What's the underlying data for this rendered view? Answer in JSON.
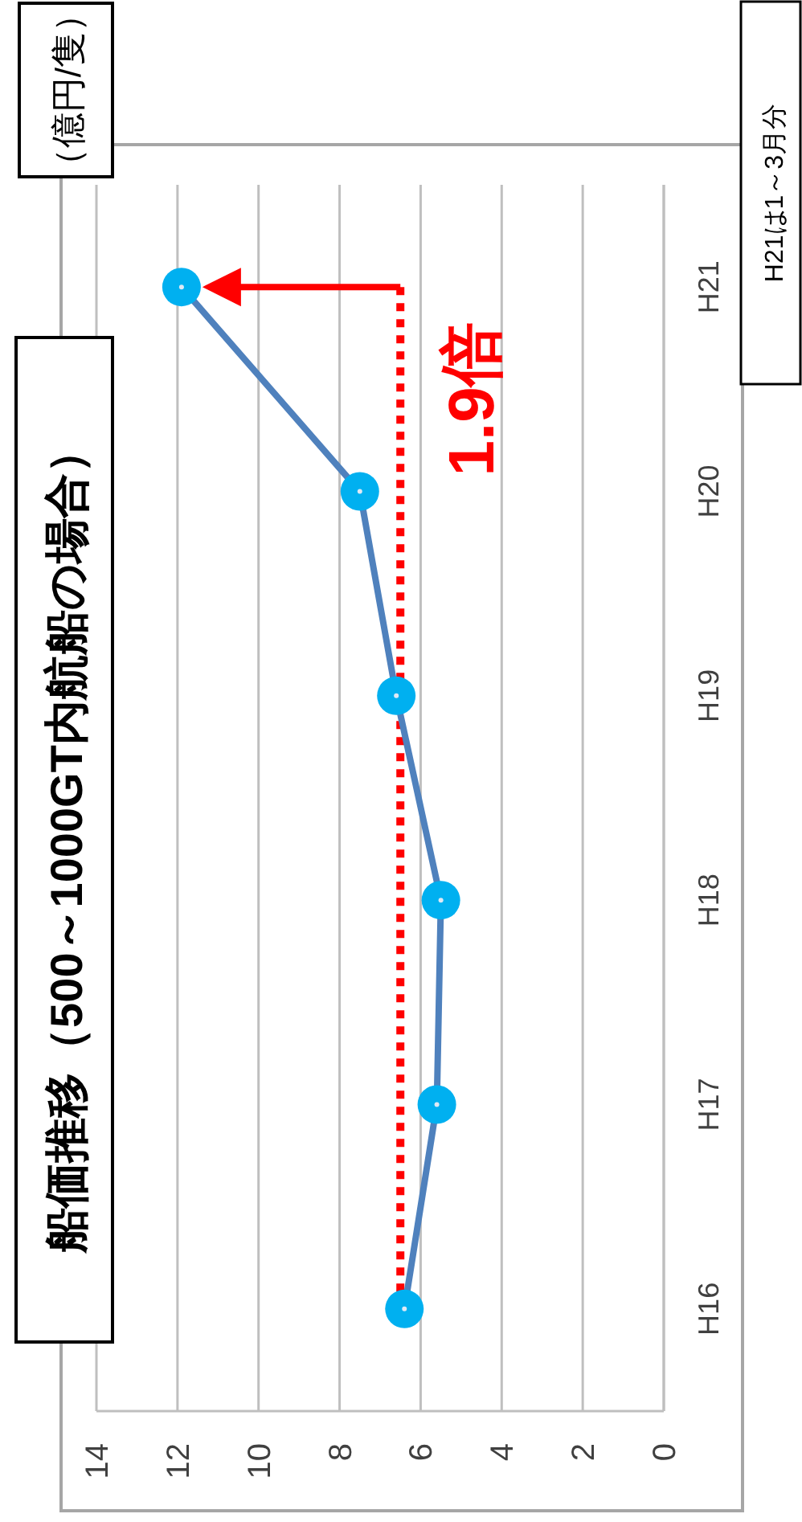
{
  "chart_data": {
    "type": "line",
    "orientation": "horizontal",
    "title": "船価推移（500～1000GT内航船の場合）",
    "categories": [
      "H21",
      "H20",
      "H19",
      "H18",
      "H17",
      "H16"
    ],
    "series": [
      {
        "color": "#4f81bd",
        "values": [
          11.9,
          7.5,
          6.6,
          5.5,
          5.6,
          6.4
        ]
      }
    ],
    "marker": "circle",
    "grid": "x",
    "xlim": [
      14,
      0
    ],
    "xticks": [
      14,
      12,
      10,
      8,
      6,
      4,
      2,
      0
    ],
    "ref_lines": [
      {
        "axis": "x",
        "value": 6.5,
        "color": "#ff0000",
        "line_style": "dotted"
      }
    ],
    "annotations": [
      "1.9倍",
      "（億円/隻）",
      "H21は1～3月分"
    ]
  }
}
